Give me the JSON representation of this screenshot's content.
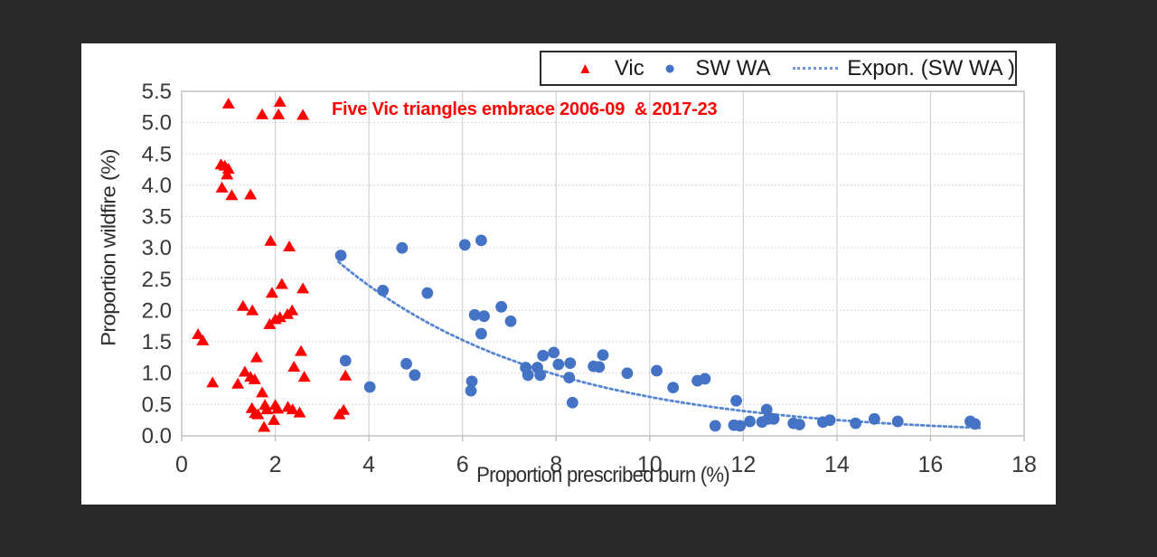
{
  "page": {
    "background_color": "#282828",
    "panel_color": "#ffffff"
  },
  "legend": {
    "border_color": "#2b2b2b",
    "items": [
      {
        "label": "Vic",
        "marker": "triangle",
        "color": "#ff0000"
      },
      {
        "label": "SW WA",
        "marker": "circle",
        "color": "#4472c4"
      },
      {
        "label": "Expon. (SW WA )",
        "marker": "dotted-line",
        "color": "#6f96d6"
      }
    ]
  },
  "annotation": {
    "text": "Five Vic triangles embrace 2006-09  & 2017-23",
    "color": "#ff0000"
  },
  "chart_data": {
    "type": "scatter",
    "title": "",
    "xlabel": "Proportion prescribed burn (%)",
    "ylabel": "Proportion wildfire (%)",
    "xlim": [
      0,
      18
    ],
    "ylim": [
      0,
      5.5
    ],
    "x_ticks": [
      0,
      2,
      4,
      6,
      8,
      10,
      12,
      14,
      16,
      18
    ],
    "x_tick_labels": [
      "0",
      "2",
      "4",
      "6",
      "8",
      "10",
      "12",
      "14",
      "16",
      "18"
    ],
    "y_ticks": [
      0,
      0.5,
      1,
      1.5,
      2,
      2.5,
      3,
      3.5,
      4,
      4.5,
      5,
      5.5
    ],
    "y_tick_labels": [
      "0.0",
      "0.5",
      "1.0",
      "1.5",
      "2.0",
      "2.5",
      "3.0",
      "3.5",
      "4.0",
      "4.5",
      "5.0",
      "5.5"
    ],
    "grid": true,
    "grid_color": "#d2d2d2",
    "axis_border_color": "#bfbfbf",
    "tick_label_color": "#383838",
    "legend_position": "top-right-inside",
    "series": [
      {
        "name": "Vic",
        "marker": "triangle",
        "color": "#ff0000",
        "points": [
          [
            1.0,
            5.3
          ],
          [
            1.72,
            5.13
          ],
          [
            2.1,
            5.33
          ],
          [
            2.07,
            5.13
          ],
          [
            2.59,
            5.12
          ],
          [
            0.84,
            4.33
          ],
          [
            0.92,
            4.31
          ],
          [
            1.0,
            4.26
          ],
          [
            0.97,
            4.17
          ],
          [
            0.86,
            3.96
          ],
          [
            1.07,
            3.84
          ],
          [
            1.47,
            3.85
          ],
          [
            1.9,
            3.11
          ],
          [
            2.3,
            3.02
          ],
          [
            2.14,
            2.42
          ],
          [
            1.93,
            2.28
          ],
          [
            2.59,
            2.35
          ],
          [
            1.31,
            2.07
          ],
          [
            1.51,
            2.0
          ],
          [
            1.88,
            1.78
          ],
          [
            2.0,
            1.86
          ],
          [
            2.1,
            1.89
          ],
          [
            2.26,
            1.94
          ],
          [
            2.36,
            2.0
          ],
          [
            0.35,
            1.62
          ],
          [
            0.45,
            1.52
          ],
          [
            1.6,
            1.25
          ],
          [
            2.55,
            1.35
          ],
          [
            2.4,
            1.1
          ],
          [
            0.66,
            0.85
          ],
          [
            1.2,
            0.83
          ],
          [
            1.35,
            1.02
          ],
          [
            1.47,
            0.94
          ],
          [
            1.56,
            0.9
          ],
          [
            2.62,
            0.94
          ],
          [
            3.5,
            0.96
          ],
          [
            1.72,
            0.69
          ],
          [
            1.5,
            0.44
          ],
          [
            1.57,
            0.36
          ],
          [
            1.63,
            0.34
          ],
          [
            1.78,
            0.49
          ],
          [
            1.82,
            0.42
          ],
          [
            2.0,
            0.49
          ],
          [
            2.05,
            0.43
          ],
          [
            2.27,
            0.46
          ],
          [
            2.37,
            0.42
          ],
          [
            2.52,
            0.37
          ],
          [
            1.97,
            0.25
          ],
          [
            1.76,
            0.14
          ],
          [
            3.37,
            0.34
          ],
          [
            3.46,
            0.41
          ]
        ]
      },
      {
        "name": "SW WA",
        "marker": "circle",
        "color": "#4472c4",
        "points": [
          [
            3.4,
            2.88
          ],
          [
            4.71,
            3.0
          ],
          [
            6.05,
            3.05
          ],
          [
            6.4,
            3.12
          ],
          [
            4.3,
            2.32
          ],
          [
            5.25,
            2.28
          ],
          [
            6.83,
            2.06
          ],
          [
            6.26,
            1.93
          ],
          [
            6.46,
            1.91
          ],
          [
            7.03,
            1.83
          ],
          [
            6.4,
            1.63
          ],
          [
            3.5,
            1.2
          ],
          [
            4.8,
            1.15
          ],
          [
            4.98,
            0.97
          ],
          [
            4.02,
            0.78
          ],
          [
            6.2,
            0.87
          ],
          [
            6.18,
            0.72
          ],
          [
            7.35,
            1.09
          ],
          [
            7.4,
            0.97
          ],
          [
            7.6,
            1.09
          ],
          [
            7.66,
            0.97
          ],
          [
            7.72,
            1.28
          ],
          [
            7.95,
            1.33
          ],
          [
            8.05,
            1.14
          ],
          [
            8.3,
            1.16
          ],
          [
            8.28,
            0.93
          ],
          [
            8.35,
            0.53
          ],
          [
            8.8,
            1.11
          ],
          [
            8.92,
            1.1
          ],
          [
            9.0,
            1.29
          ],
          [
            9.52,
            1.0
          ],
          [
            10.15,
            1.04
          ],
          [
            10.5,
            0.77
          ],
          [
            11.02,
            0.88
          ],
          [
            11.18,
            0.91
          ],
          [
            11.85,
            0.56
          ],
          [
            11.4,
            0.16
          ],
          [
            11.8,
            0.17
          ],
          [
            11.93,
            0.16
          ],
          [
            12.14,
            0.23
          ],
          [
            12.4,
            0.22
          ],
          [
            12.53,
            0.27
          ],
          [
            12.65,
            0.27
          ],
          [
            12.5,
            0.42
          ],
          [
            13.07,
            0.2
          ],
          [
            13.2,
            0.18
          ],
          [
            13.7,
            0.22
          ],
          [
            13.85,
            0.25
          ],
          [
            14.4,
            0.2
          ],
          [
            14.8,
            0.27
          ],
          [
            15.3,
            0.23
          ],
          [
            16.85,
            0.23
          ],
          [
            16.95,
            0.19
          ]
        ]
      }
    ],
    "trendline": {
      "name": "Expon. (SW WA )",
      "type": "exponential",
      "color": "#5585d0",
      "a": 5.9,
      "b": -0.225,
      "x_start": 3.35,
      "x_end": 17.05
    }
  }
}
